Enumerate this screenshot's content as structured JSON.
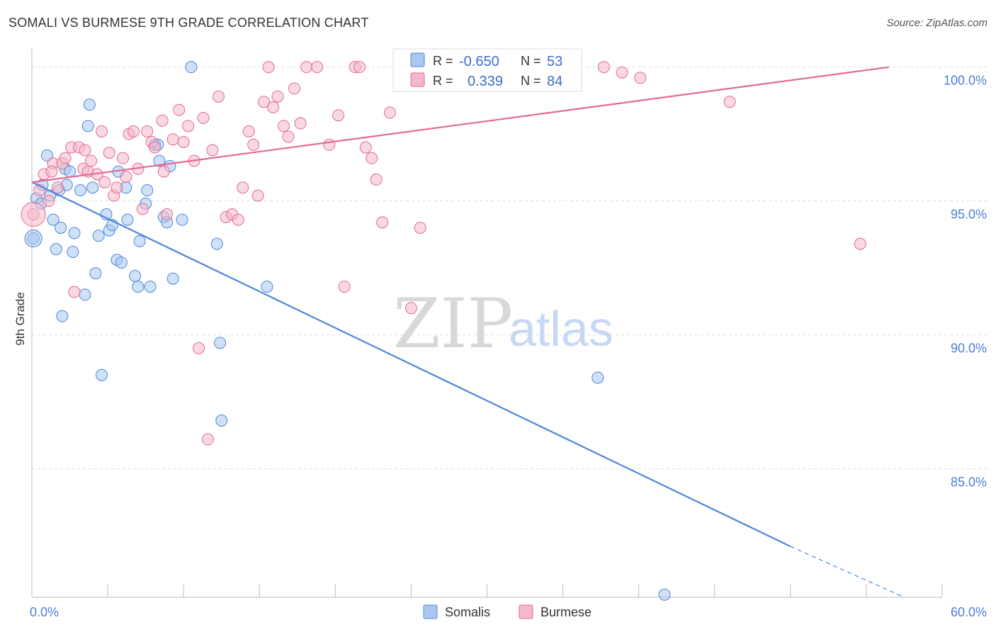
{
  "header": {
    "title": "SOMALI VS BURMESE 9TH GRADE CORRELATION CHART",
    "source": "Source: ZipAtlas.com"
  },
  "watermark": {
    "zip": "ZIP",
    "atlas": "atlas"
  },
  "legend_box": {
    "rows": [
      {
        "r_label": "R =",
        "r_value": "-0.650",
        "n_label": "N =",
        "n_value": "53",
        "color": "#a9c8f0"
      },
      {
        "r_label": "R =",
        "r_value": "0.339",
        "n_label": "N =",
        "n_value": "84",
        "color": "#f5b8c8"
      }
    ]
  },
  "bottom_legend": [
    {
      "label": "Somalis",
      "color": "#a9c8f0"
    },
    {
      "label": "Burmese",
      "color": "#f5b8c8"
    }
  ],
  "chart_data": {
    "type": "scatter",
    "title": "SOMALI VS BURMESE 9TH GRADE CORRELATION CHART",
    "xlabel": "",
    "ylabel": "9th Grade",
    "xlim": [
      0,
      60
    ],
    "ylim": [
      80.2,
      100.6
    ],
    "x_tick_labels": [
      "0.0%",
      "60.0%"
    ],
    "y_ticks": [
      85,
      90,
      95,
      100
    ],
    "y_tick_labels": [
      "85.0%",
      "90.0%",
      "95.0%",
      "100.0%"
    ],
    "grid": true,
    "legend_position": "bottom",
    "colors": {
      "somalis": "#4a88d8",
      "burmese": "#e06a93",
      "somalis_fill": "#a9c8f0",
      "burmese_fill": "#f5b8c8"
    },
    "series": [
      {
        "name": "Somalis",
        "trend": {
          "x": [
            0,
            50
          ],
          "y": [
            95.7,
            82.1
          ],
          "dashed_to": [
            57.5,
            80.2
          ]
        },
        "points": [
          [
            0.3,
            95.1
          ],
          [
            0.6,
            94.9
          ],
          [
            0.7,
            95.6
          ],
          [
            1.0,
            96.7
          ],
          [
            1.2,
            95.2
          ],
          [
            1.4,
            94.3
          ],
          [
            1.6,
            93.2
          ],
          [
            1.8,
            95.4
          ],
          [
            2.0,
            90.7
          ],
          [
            2.2,
            96.2
          ],
          [
            2.3,
            95.6
          ],
          [
            2.5,
            96.1
          ],
          [
            2.8,
            93.8
          ],
          [
            3.2,
            95.4
          ],
          [
            3.5,
            91.5
          ],
          [
            3.7,
            97.8
          ],
          [
            3.8,
            98.6
          ],
          [
            4.0,
            95.5
          ],
          [
            4.2,
            92.3
          ],
          [
            4.4,
            93.7
          ],
          [
            4.6,
            88.5
          ],
          [
            4.9,
            94.5
          ],
          [
            5.1,
            93.9
          ],
          [
            5.3,
            94.1
          ],
          [
            5.6,
            92.8
          ],
          [
            5.7,
            96.1
          ],
          [
            5.9,
            92.7
          ],
          [
            6.2,
            95.5
          ],
          [
            6.8,
            92.2
          ],
          [
            7.0,
            91.8
          ],
          [
            7.1,
            93.5
          ],
          [
            7.5,
            94.9
          ],
          [
            7.6,
            95.4
          ],
          [
            7.8,
            91.8
          ],
          [
            8.1,
            97.1
          ],
          [
            8.3,
            97.1
          ],
          [
            8.7,
            94.4
          ],
          [
            8.9,
            94.2
          ],
          [
            9.1,
            96.3
          ],
          [
            9.3,
            92.1
          ],
          [
            9.9,
            94.3
          ],
          [
            10.5,
            100.0
          ],
          [
            12.2,
            93.4
          ],
          [
            12.4,
            89.7
          ],
          [
            12.5,
            86.8
          ],
          [
            15.5,
            91.8
          ],
          [
            37.3,
            88.4
          ],
          [
            41.7,
            80.3
          ],
          [
            0.1,
            93.6
          ],
          [
            1.9,
            94.0
          ],
          [
            2.7,
            93.1
          ],
          [
            6.3,
            94.3
          ],
          [
            8.4,
            96.5
          ]
        ]
      },
      {
        "name": "Burmese",
        "trend": {
          "x": [
            0,
            56.5
          ],
          "y": [
            95.7,
            100.0
          ]
        },
        "points": [
          [
            0.1,
            94.5
          ],
          [
            0.5,
            95.4
          ],
          [
            0.8,
            96.0
          ],
          [
            1.1,
            95.0
          ],
          [
            1.4,
            96.4
          ],
          [
            1.7,
            95.5
          ],
          [
            2.0,
            96.4
          ],
          [
            2.2,
            96.6
          ],
          [
            2.6,
            97.0
          ],
          [
            2.8,
            91.6
          ],
          [
            3.1,
            97.0
          ],
          [
            3.4,
            96.2
          ],
          [
            3.7,
            96.1
          ],
          [
            3.9,
            96.5
          ],
          [
            4.3,
            96.0
          ],
          [
            4.6,
            97.6
          ],
          [
            4.8,
            95.7
          ],
          [
            5.1,
            96.8
          ],
          [
            5.4,
            95.2
          ],
          [
            5.6,
            95.5
          ],
          [
            6.0,
            96.6
          ],
          [
            6.4,
            97.5
          ],
          [
            6.7,
            97.6
          ],
          [
            7.0,
            96.2
          ],
          [
            7.3,
            94.7
          ],
          [
            7.6,
            97.6
          ],
          [
            7.9,
            97.2
          ],
          [
            8.1,
            97.0
          ],
          [
            8.6,
            98.0
          ],
          [
            8.9,
            94.5
          ],
          [
            9.3,
            97.3
          ],
          [
            9.7,
            98.4
          ],
          [
            10.0,
            97.2
          ],
          [
            10.3,
            97.8
          ],
          [
            10.7,
            96.5
          ],
          [
            11.0,
            89.5
          ],
          [
            11.3,
            98.1
          ],
          [
            11.6,
            86.1
          ],
          [
            11.9,
            96.9
          ],
          [
            12.3,
            98.9
          ],
          [
            12.8,
            94.4
          ],
          [
            13.2,
            94.5
          ],
          [
            13.6,
            94.3
          ],
          [
            13.9,
            95.5
          ],
          [
            14.3,
            97.6
          ],
          [
            14.6,
            97.1
          ],
          [
            14.9,
            95.2
          ],
          [
            15.3,
            98.7
          ],
          [
            15.6,
            100.0
          ],
          [
            15.9,
            98.5
          ],
          [
            16.2,
            98.9
          ],
          [
            16.6,
            97.8
          ],
          [
            16.9,
            97.4
          ],
          [
            17.3,
            99.2
          ],
          [
            17.7,
            97.9
          ],
          [
            18.1,
            100.0
          ],
          [
            18.8,
            100.0
          ],
          [
            19.6,
            97.1
          ],
          [
            20.2,
            98.2
          ],
          [
            20.6,
            91.8
          ],
          [
            21.3,
            100.0
          ],
          [
            21.6,
            100.0
          ],
          [
            22.0,
            97.0
          ],
          [
            22.4,
            96.6
          ],
          [
            22.7,
            95.8
          ],
          [
            23.1,
            94.2
          ],
          [
            23.6,
            98.3
          ],
          [
            24.4,
            100.0
          ],
          [
            25.0,
            91.0
          ],
          [
            25.6,
            94.0
          ],
          [
            26.3,
            100.0
          ],
          [
            27.4,
            100.0
          ],
          [
            28.1,
            100.0
          ],
          [
            29.0,
            100.0
          ],
          [
            33.7,
            100.0
          ],
          [
            37.7,
            100.0
          ],
          [
            38.9,
            99.8
          ],
          [
            40.1,
            99.6
          ],
          [
            46.0,
            98.7
          ],
          [
            54.6,
            93.4
          ],
          [
            6.2,
            95.9
          ],
          [
            8.7,
            96.1
          ],
          [
            3.5,
            96.9
          ],
          [
            1.3,
            96.1
          ]
        ]
      }
    ]
  }
}
